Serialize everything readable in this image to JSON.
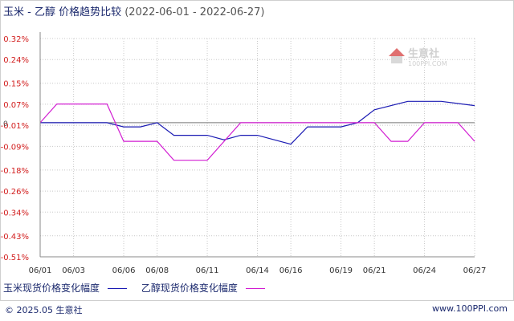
{
  "title": {
    "main": "玉米 - 乙醇 价格趋势比较",
    "range": "(2022-06-01 - 2022-06-27)"
  },
  "watermark": {
    "name": "生意社",
    "url": "100PPI.COM"
  },
  "footer": {
    "copyright": "© 2025.05 生意社",
    "site": "www.100PPI.com"
  },
  "colors": {
    "series1": "#1c1cb4",
    "series2": "#d21ed2",
    "grid": "#c8c8c8",
    "axis": "#888888"
  },
  "chart_data": {
    "type": "line",
    "x_ticks": [
      "06/01",
      "06/03",
      "06/06",
      "06/08",
      "06/11",
      "06/14",
      "06/16",
      "06/19",
      "06/21",
      "06/24",
      "06/27"
    ],
    "y_ticks": [
      "0.32%",
      "0.24%",
      "0.15%",
      "0.07%",
      "-0.01%",
      "-0.09%",
      "-0.18%",
      "-0.26%",
      "-0.34%",
      "-0.43%",
      "-0.51%"
    ],
    "y_tick_values": [
      0.32,
      0.24,
      0.15,
      0.07,
      -0.01,
      -0.09,
      -0.18,
      -0.26,
      -0.34,
      -0.43,
      -0.51
    ],
    "zero_label": "0",
    "ylim": [
      -0.51,
      0.32
    ],
    "grid": true,
    "legend_position": "bottom",
    "series": [
      {
        "name": "玉米现货价格变化幅度",
        "color": "#1c1cb4",
        "points": [
          [
            "06/01",
            0.0
          ],
          [
            "06/03",
            0.0
          ],
          [
            "06/05",
            0.0
          ],
          [
            "06/06",
            -0.016
          ],
          [
            "06/07",
            -0.016
          ],
          [
            "06/08",
            0.0
          ],
          [
            "06/09",
            -0.048
          ],
          [
            "06/10",
            -0.048
          ],
          [
            "06/11",
            -0.048
          ],
          [
            "06/12",
            -0.065
          ],
          [
            "06/13",
            -0.048
          ],
          [
            "06/14",
            -0.048
          ],
          [
            "06/16",
            -0.082
          ],
          [
            "06/17",
            -0.016
          ],
          [
            "06/18",
            -0.016
          ],
          [
            "06/19",
            -0.016
          ],
          [
            "06/20",
            0.0
          ],
          [
            "06/21",
            0.049
          ],
          [
            "06/23",
            0.081
          ],
          [
            "06/24",
            0.081
          ],
          [
            "06/25",
            0.081
          ],
          [
            "06/27",
            0.065
          ]
        ]
      },
      {
        "name": "乙醇现货价格变化幅度",
        "color": "#d21ed2",
        "points": [
          [
            "06/01",
            0.0
          ],
          [
            "06/02",
            0.071
          ],
          [
            "06/03",
            0.071
          ],
          [
            "06/05",
            0.071
          ],
          [
            "06/06",
            -0.071
          ],
          [
            "06/07",
            -0.071
          ],
          [
            "06/08",
            -0.071
          ],
          [
            "06/09",
            -0.143
          ],
          [
            "06/10",
            -0.143
          ],
          [
            "06/11",
            -0.143
          ],
          [
            "06/13",
            0.0
          ],
          [
            "06/16",
            0.0
          ],
          [
            "06/19",
            0.0
          ],
          [
            "06/20",
            0.0
          ],
          [
            "06/21",
            0.0
          ],
          [
            "06/22",
            -0.071
          ],
          [
            "06/23",
            -0.071
          ],
          [
            "06/24",
            0.0
          ],
          [
            "06/25",
            0.0
          ],
          [
            "06/26",
            0.0
          ],
          [
            "06/27",
            -0.071
          ]
        ]
      }
    ]
  }
}
